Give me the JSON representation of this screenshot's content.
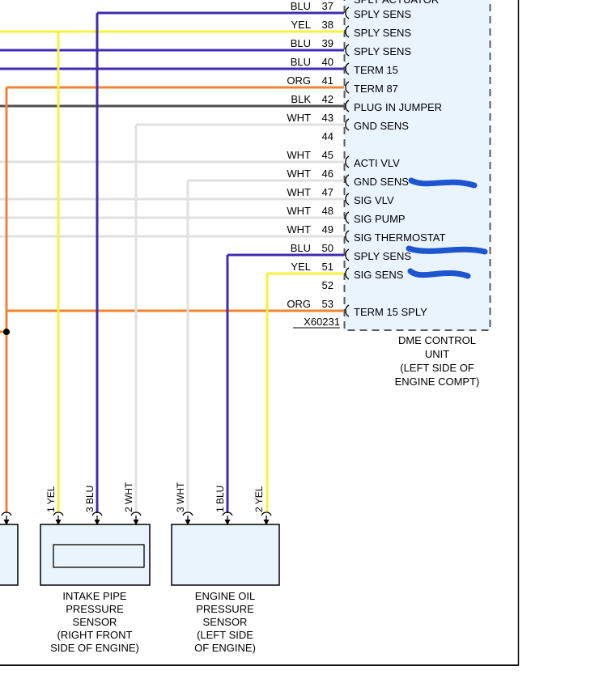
{
  "colors": {
    "BLU": "#3f2cb2",
    "YEL": "#f6f33c",
    "ORG": "#ef8433",
    "BLK": "#4f4f4f",
    "WHT": "#e0e0e0",
    "box_fill": "#e9f4fc",
    "box_dash": "#5a5a5a",
    "highlight": "#1d55d0",
    "frame": "#111111",
    "dot": "#000000"
  },
  "dme": {
    "top_partial_signal": "SPLY ACTUATOR",
    "connector_id": "X60231",
    "caption": [
      "DME CONTROL",
      "UNIT",
      "(LEFT SIDE OF",
      "ENGINE COMPT)"
    ],
    "pins": [
      {
        "pin": "37",
        "color": "BLU",
        "signal": "SPLY SENS"
      },
      {
        "pin": "38",
        "color": "YEL",
        "signal": "SPLY SENS"
      },
      {
        "pin": "39",
        "color": "BLU",
        "signal": "SPLY SENS"
      },
      {
        "pin": "40",
        "color": "BLU",
        "signal": "TERM 15"
      },
      {
        "pin": "41",
        "color": "ORG",
        "signal": "TERM 87"
      },
      {
        "pin": "42",
        "color": "BLK",
        "signal": "PLUG IN JUMPER"
      },
      {
        "pin": "43",
        "color": "WHT",
        "signal": "GND SENS"
      },
      {
        "pin": "44",
        "color": "",
        "signal": ""
      },
      {
        "pin": "45",
        "color": "WHT",
        "signal": "ACTI VLV"
      },
      {
        "pin": "46",
        "color": "WHT",
        "signal": "GND SENS"
      },
      {
        "pin": "47",
        "color": "WHT",
        "signal": "SIG VLV"
      },
      {
        "pin": "48",
        "color": "WHT",
        "signal": "SIG PUMP"
      },
      {
        "pin": "49",
        "color": "WHT",
        "signal": "SIG THERMOSTAT"
      },
      {
        "pin": "50",
        "color": "BLU",
        "signal": "SPLY SENS"
      },
      {
        "pin": "51",
        "color": "YEL",
        "signal": "SIG SENS"
      },
      {
        "pin": "52",
        "color": "",
        "signal": ""
      },
      {
        "pin": "53",
        "color": "ORG",
        "signal": "TERM 15 SPLY"
      }
    ]
  },
  "sensors": {
    "intake": {
      "caption": [
        "INTAKE PIPE",
        "PRESSURE",
        "SENSOR",
        "(RIGHT FRONT",
        "SIDE OF ENGINE)"
      ],
      "pins": [
        "1 YEL",
        "3 BLU",
        "2 WHT"
      ]
    },
    "oil": {
      "caption": [
        "ENGINE OIL",
        "PRESSURE",
        "SENSOR",
        "(LEFT SIDE",
        "OF ENGINE)"
      ],
      "pins": [
        "3 WHT",
        "1 BLU",
        "2 YEL"
      ]
    }
  },
  "annotations": {
    "highlight_marks": 3
  }
}
